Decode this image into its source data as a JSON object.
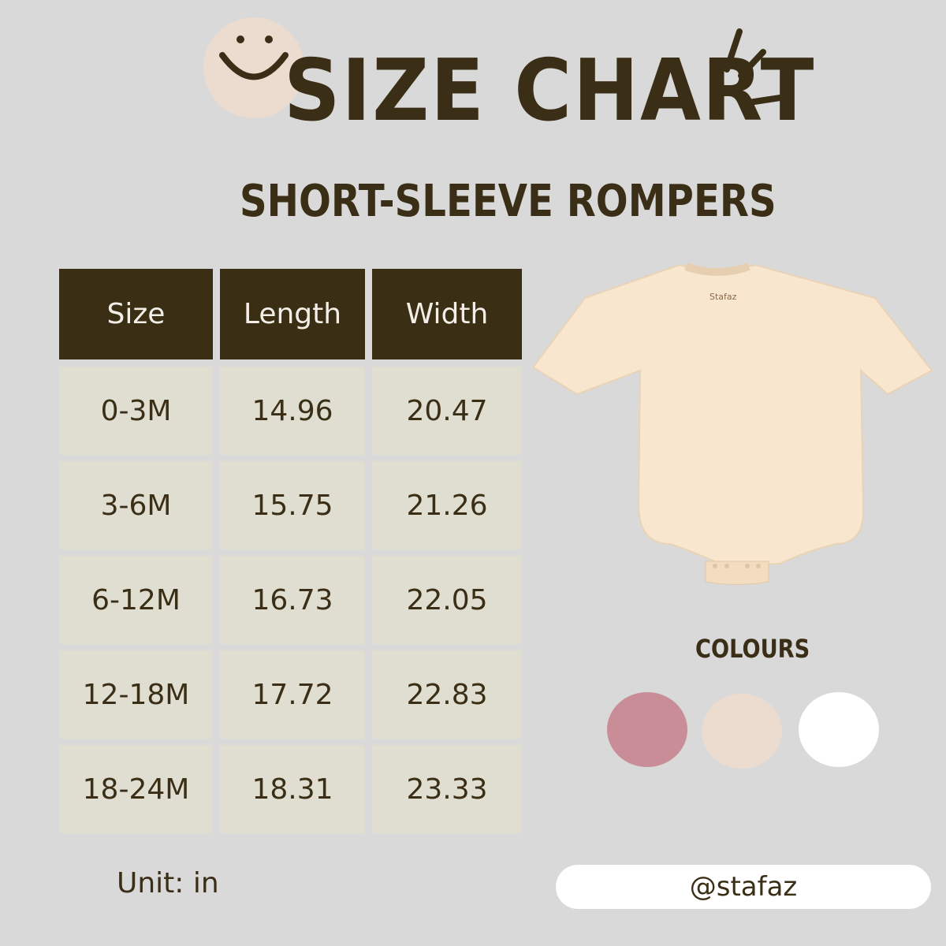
{
  "header": {
    "title": "SIZE CHART",
    "subtitle": "SHORT-SLEEVE ROMPERS"
  },
  "table": {
    "columns": [
      "Size",
      "Length",
      "Width"
    ],
    "rows": [
      [
        "0-3M",
        "14.96",
        "20.47"
      ],
      [
        "3-6M",
        "15.75",
        "21.26"
      ],
      [
        "6-12M",
        "16.73",
        "22.05"
      ],
      [
        "12-18M",
        "17.72",
        "22.83"
      ],
      [
        "18-24M",
        "18.31",
        "23.33"
      ]
    ]
  },
  "unit": "Unit: in",
  "product": {
    "label_text": "Stafaz"
  },
  "colours": {
    "label": "COLOURS",
    "swatches": [
      "#c98d97",
      "#ecdcd0",
      "#ffffff"
    ]
  },
  "handle": "@stafaz",
  "theme": {
    "header_bg": "#3a2f14",
    "cell_bg": "#e0ddd1",
    "background": "#d9d9d9",
    "smiley_bg": "#ecdcd0"
  }
}
